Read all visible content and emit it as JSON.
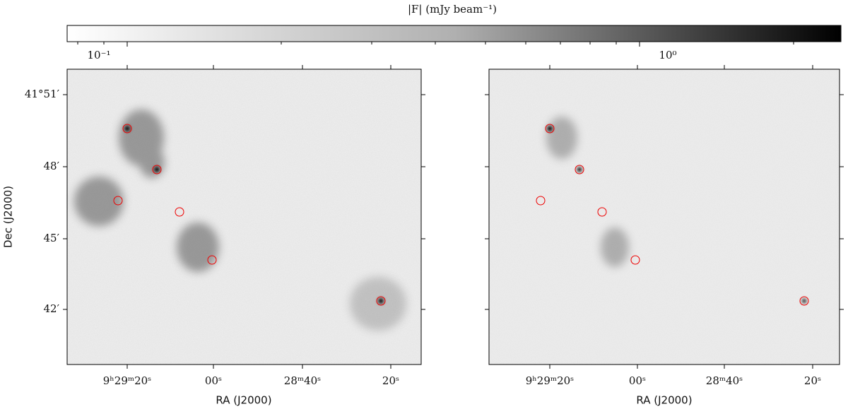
{
  "colorbar": {
    "label": "|F| (mJy beam⁻¹)",
    "ticks": [
      "10⁻¹",
      "10⁰"
    ]
  },
  "panels": [
    {
      "xlabel": "RA (J2000)",
      "ylabel": "Dec (J2000)",
      "xticks": [
        "9ʰ29ᵐ20ˢ",
        "00ˢ",
        "28ᵐ40ˢ",
        "20ˢ"
      ],
      "yticks": [
        "41°51′",
        "48′",
        "45′",
        "42′"
      ]
    },
    {
      "xlabel": "RA (J2000)",
      "xticks": [
        "9ʰ29ᵐ20ˢ",
        "00ˢ",
        "28ᵐ40ˢ",
        "20ˢ"
      ]
    }
  ]
}
